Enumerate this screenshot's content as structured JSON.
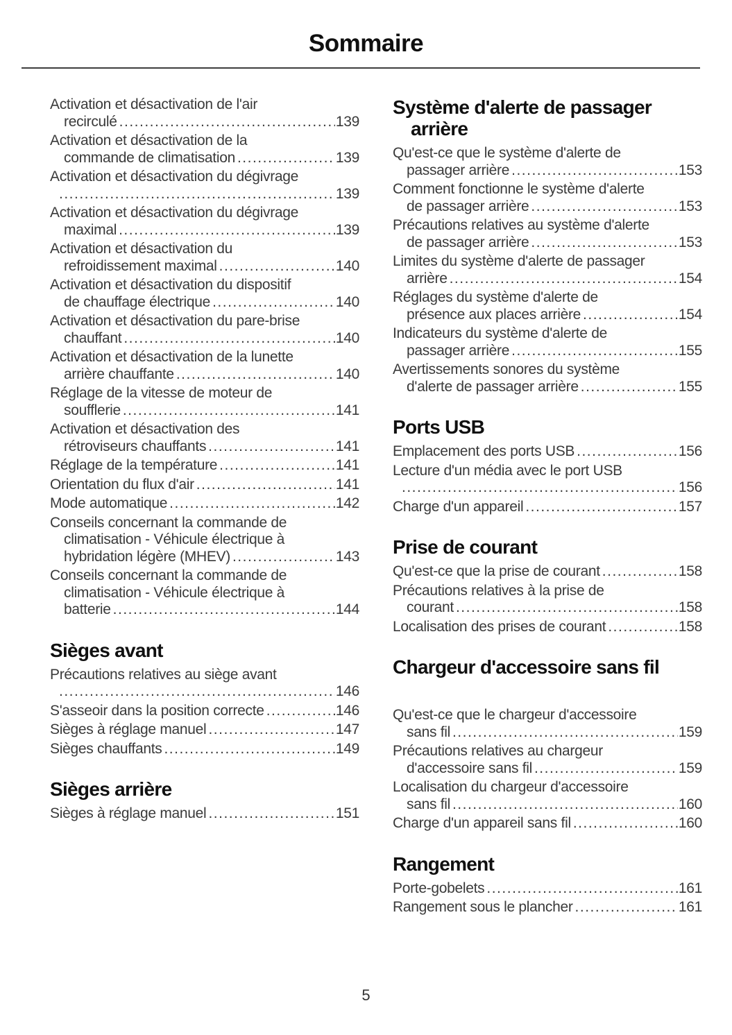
{
  "page": {
    "title": "Sommaire",
    "page_number": "5"
  },
  "columns": [
    {
      "sections": [
        {
          "heading": null,
          "entries": [
            {
              "lines": [
                "Activation et désactivation de l'air",
                "recirculé"
              ],
              "page": "139"
            },
            {
              "lines": [
                "Activation et désactivation de la",
                "commande de climatisation"
              ],
              "page": "139"
            },
            {
              "lines": [
                "Activation et désactivation du dégivrage",
                ""
              ],
              "page": "139"
            },
            {
              "lines": [
                "Activation et désactivation du dégivrage",
                "maximal"
              ],
              "page": "139"
            },
            {
              "lines": [
                "Activation et désactivation du",
                "refroidissement maximal"
              ],
              "page": "140"
            },
            {
              "lines": [
                "Activation et désactivation du dispositif",
                "de chauffage électrique"
              ],
              "page": "140"
            },
            {
              "lines": [
                "Activation et désactivation du pare-brise",
                "chauffant"
              ],
              "page": "140"
            },
            {
              "lines": [
                "Activation et désactivation de la lunette",
                "arrière chauffante"
              ],
              "page": "140"
            },
            {
              "lines": [
                "Réglage de la vitesse de moteur de",
                "soufflerie"
              ],
              "page": "141"
            },
            {
              "lines": [
                "Activation et désactivation des",
                "rétroviseurs chauffants"
              ],
              "page": "141"
            },
            {
              "lines": [
                "Réglage de la température"
              ],
              "page": "141"
            },
            {
              "lines": [
                "Orientation du flux d'air"
              ],
              "page": "141"
            },
            {
              "lines": [
                "Mode automatique"
              ],
              "page": "142"
            },
            {
              "lines": [
                "Conseils concernant la commande de",
                "climatisation - Véhicule électrique à",
                "hybridation légère (MHEV)"
              ],
              "page": "143"
            },
            {
              "lines": [
                "Conseils concernant la commande de",
                "climatisation - Véhicule électrique à",
                "batterie"
              ],
              "page": "144"
            }
          ]
        },
        {
          "heading": "Sièges avant",
          "entries": [
            {
              "lines": [
                "Précautions relatives au siège avant",
                ""
              ],
              "page": "146"
            },
            {
              "lines": [
                "S'asseoir dans la position correcte"
              ],
              "page": "146"
            },
            {
              "lines": [
                "Sièges à réglage manuel"
              ],
              "page": "147"
            },
            {
              "lines": [
                "Sièges chauffants"
              ],
              "page": "149"
            }
          ]
        },
        {
          "heading": "Sièges arrière",
          "entries": [
            {
              "lines": [
                "Sièges à réglage manuel"
              ],
              "page": "151"
            }
          ]
        }
      ]
    },
    {
      "sections": [
        {
          "heading": "Système d'alerte de passager arrière",
          "entries": [
            {
              "lines": [
                "Qu'est-ce que le système d'alerte de",
                "passager arrière"
              ],
              "page": "153"
            },
            {
              "lines": [
                "Comment fonctionne le système d'alerte",
                "de passager arrière"
              ],
              "page": "153"
            },
            {
              "lines": [
                "Précautions relatives au système d'alerte",
                "de passager arrière"
              ],
              "page": "153"
            },
            {
              "lines": [
                "Limites du système d'alerte de passager",
                "arrière"
              ],
              "page": "154"
            },
            {
              "lines": [
                "Réglages du système d'alerte de",
                "présence aux places arrière"
              ],
              "page": "154"
            },
            {
              "lines": [
                "Indicateurs du système d'alerte de",
                "passager arrière"
              ],
              "page": "155"
            },
            {
              "lines": [
                "Avertissements sonores du système",
                "d'alerte de passager arrière"
              ],
              "page": "155"
            }
          ]
        },
        {
          "heading": "Ports USB",
          "entries": [
            {
              "lines": [
                "Emplacement des ports USB"
              ],
              "page": "156"
            },
            {
              "lines": [
                "Lecture d'un média avec le port USB",
                ""
              ],
              "page": "156"
            },
            {
              "lines": [
                "Charge d'un appareil"
              ],
              "page": "157"
            }
          ]
        },
        {
          "heading": "Prise de courant",
          "entries": [
            {
              "lines": [
                "Qu'est-ce que la prise de courant"
              ],
              "page": "158"
            },
            {
              "lines": [
                "Précautions relatives à la prise de",
                "courant"
              ],
              "page": "158"
            },
            {
              "lines": [
                "Localisation des prises de courant"
              ],
              "page": "158"
            }
          ]
        },
        {
          "heading": "Chargeur d'accessoire sans fil",
          "gap_after_heading": true,
          "entries": [
            {
              "lines": [
                "Qu'est-ce que le chargeur d'accessoire",
                "sans fil"
              ],
              "page": "159"
            },
            {
              "lines": [
                "Précautions relatives au chargeur",
                "d'accessoire sans fil"
              ],
              "page": "159"
            },
            {
              "lines": [
                "Localisation du chargeur d'accessoire",
                "sans fil"
              ],
              "page": "160"
            },
            {
              "lines": [
                "Charge d'un appareil sans fil"
              ],
              "page": "160"
            }
          ]
        },
        {
          "heading": "Rangement",
          "entries": [
            {
              "lines": [
                "Porte-gobelets"
              ],
              "page": "161"
            },
            {
              "lines": [
                "Rangement sous le plancher"
              ],
              "page": "161"
            }
          ]
        }
      ]
    }
  ]
}
